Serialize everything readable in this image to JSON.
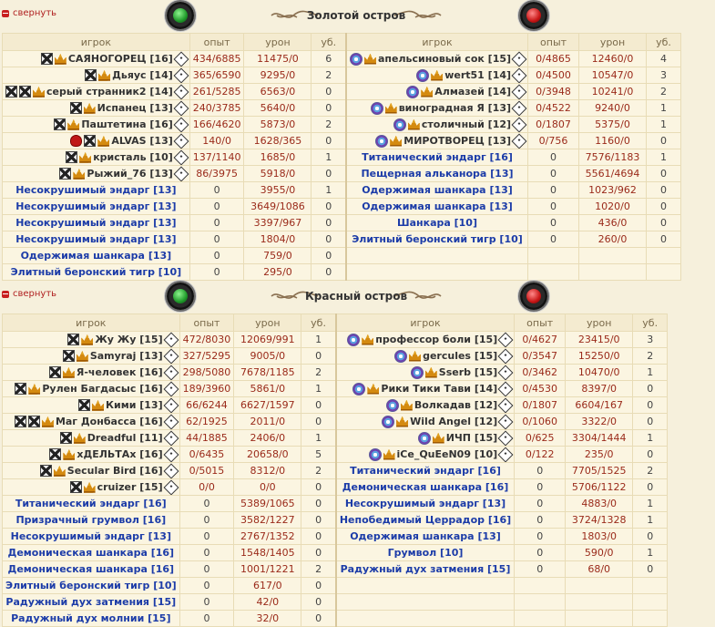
{
  "collapse_label": "свернуть",
  "headers": {
    "player": "игрок",
    "exp": "опыт",
    "damage": "урон",
    "kills": "уб."
  },
  "islands": [
    {
      "title": "Золотой остров",
      "left": [
        {
          "name": "САЯНОГОРЕЦ [16]",
          "exp": "434/6885",
          "dmg": "11475/0",
          "kills": "6",
          "type": "player",
          "icons": [
            "cross",
            "crown"
          ]
        },
        {
          "name": "Дьяус [14]",
          "exp": "365/6590",
          "dmg": "9295/0",
          "kills": "2",
          "type": "player",
          "icons": [
            "cross",
            "crown"
          ]
        },
        {
          "name": "серый странник2 [14]",
          "exp": "261/5285",
          "dmg": "6563/0",
          "kills": "0",
          "type": "player",
          "icons": [
            "cross",
            "cross",
            "crown"
          ]
        },
        {
          "name": "Испанец [13]",
          "exp": "240/3785",
          "dmg": "5640/0",
          "kills": "0",
          "type": "player",
          "icons": [
            "cross",
            "crown"
          ]
        },
        {
          "name": "Паштетина [16]",
          "exp": "166/4620",
          "dmg": "5873/0",
          "kills": "2",
          "type": "player",
          "icons": [
            "cross",
            "crown"
          ]
        },
        {
          "name": "ALVAS [13]",
          "exp": "140/0",
          "dmg": "1628/365",
          "kills": "0",
          "type": "player",
          "icons": [
            "skull",
            "cross",
            "crown"
          ]
        },
        {
          "name": "кристаль [10]",
          "exp": "137/1140",
          "dmg": "1685/0",
          "kills": "1",
          "type": "player",
          "icons": [
            "cross",
            "crown"
          ]
        },
        {
          "name": "Рыжий_76 [13]",
          "exp": "86/3975",
          "dmg": "5918/0",
          "kills": "0",
          "type": "player",
          "icons": [
            "cross",
            "crown"
          ]
        },
        {
          "name": "Несокрушимый эндарг [13]",
          "exp": "0",
          "dmg": "3955/0",
          "kills": "1",
          "type": "bot"
        },
        {
          "name": "Несокрушимый эндарг [13]",
          "exp": "0",
          "dmg": "3649/1086",
          "kills": "0",
          "type": "bot"
        },
        {
          "name": "Несокрушимый эндарг [13]",
          "exp": "0",
          "dmg": "3397/967",
          "kills": "0",
          "type": "bot"
        },
        {
          "name": "Несокрушимый эндарг [13]",
          "exp": "0",
          "dmg": "1804/0",
          "kills": "0",
          "type": "bot"
        },
        {
          "name": "Одержимая шанкара [13]",
          "exp": "0",
          "dmg": "759/0",
          "kills": "0",
          "type": "bot"
        },
        {
          "name": "Элитный беронский тигр [10]",
          "exp": "0",
          "dmg": "295/0",
          "kills": "0",
          "type": "bot"
        }
      ],
      "right": [
        {
          "name": "апельсиновый сок [15]",
          "exp": "0/4865",
          "dmg": "12460/0",
          "kills": "4",
          "type": "player",
          "icons": [
            "star",
            "crown"
          ]
        },
        {
          "name": "wert51 [14]",
          "exp": "0/4500",
          "dmg": "10547/0",
          "kills": "3",
          "type": "player",
          "icons": [
            "star",
            "crown"
          ]
        },
        {
          "name": "Алмазей [14]",
          "exp": "0/3948",
          "dmg": "10241/0",
          "kills": "2",
          "type": "player",
          "icons": [
            "star",
            "crown"
          ]
        },
        {
          "name": "виноградная Я [13]",
          "exp": "0/4522",
          "dmg": "9240/0",
          "kills": "1",
          "type": "player",
          "icons": [
            "star",
            "crown"
          ]
        },
        {
          "name": "столичный [12]",
          "exp": "0/1807",
          "dmg": "5375/0",
          "kills": "1",
          "type": "player",
          "icons": [
            "star",
            "crown"
          ]
        },
        {
          "name": "МИРОТВОРЕЦ [13]",
          "exp": "0/756",
          "dmg": "1160/0",
          "kills": "0",
          "type": "player",
          "icons": [
            "star",
            "crown"
          ]
        },
        {
          "name": "Титанический эндарг [16]",
          "exp": "0",
          "dmg": "7576/1183",
          "kills": "1",
          "type": "bot"
        },
        {
          "name": "Пещерная альканора [13]",
          "exp": "0",
          "dmg": "5561/4694",
          "kills": "0",
          "type": "bot"
        },
        {
          "name": "Одержимая шанкара [13]",
          "exp": "0",
          "dmg": "1023/962",
          "kills": "0",
          "type": "bot"
        },
        {
          "name": "Одержимая шанкара [13]",
          "exp": "0",
          "dmg": "1020/0",
          "kills": "0",
          "type": "bot"
        },
        {
          "name": "Шанкара [10]",
          "exp": "0",
          "dmg": "436/0",
          "kills": "0",
          "type": "bot"
        },
        {
          "name": "Элитный беронский тигр [10]",
          "exp": "0",
          "dmg": "260/0",
          "kills": "0",
          "type": "bot"
        }
      ]
    },
    {
      "title": "Красный остров",
      "left": [
        {
          "name": "Жу Жу [15]",
          "exp": "472/8030",
          "dmg": "12069/991",
          "kills": "1",
          "type": "player",
          "icons": [
            "cross",
            "crown"
          ]
        },
        {
          "name": "Samyraj [13]",
          "exp": "327/5295",
          "dmg": "9005/0",
          "kills": "0",
          "type": "player",
          "icons": [
            "cross",
            "crown"
          ]
        },
        {
          "name": "Я-человек [16]",
          "exp": "298/5080",
          "dmg": "7678/1185",
          "kills": "2",
          "type": "player",
          "icons": [
            "cross",
            "crown"
          ]
        },
        {
          "name": "Рулен Багдасыс [16]",
          "exp": "189/3960",
          "dmg": "5861/0",
          "kills": "1",
          "type": "player",
          "icons": [
            "cross",
            "crown"
          ]
        },
        {
          "name": "Кими [13]",
          "exp": "66/6244",
          "dmg": "6627/1597",
          "kills": "0",
          "type": "player",
          "icons": [
            "cross",
            "crown"
          ]
        },
        {
          "name": "Маг Донбасса [16]",
          "exp": "62/1925",
          "dmg": "2011/0",
          "kills": "0",
          "type": "player",
          "icons": [
            "cross",
            "cross",
            "crown"
          ]
        },
        {
          "name": "Dreadful [11]",
          "exp": "44/1885",
          "dmg": "2406/0",
          "kills": "1",
          "type": "player",
          "icons": [
            "cross",
            "crown"
          ]
        },
        {
          "name": "хДЕЛЬТАх [16]",
          "exp": "0/6435",
          "dmg": "20658/0",
          "kills": "5",
          "type": "player",
          "icons": [
            "cross",
            "crown"
          ]
        },
        {
          "name": "Secular Bird [16]",
          "exp": "0/5015",
          "dmg": "8312/0",
          "kills": "2",
          "type": "player",
          "icons": [
            "cross",
            "crown"
          ]
        },
        {
          "name": "cruizer [15]",
          "exp": "0/0",
          "dmg": "0/0",
          "kills": "0",
          "type": "player",
          "icons": [
            "cross",
            "crown"
          ]
        },
        {
          "name": "Титанический эндарг [16]",
          "exp": "0",
          "dmg": "5389/1065",
          "kills": "0",
          "type": "bot"
        },
        {
          "name": "Призрачный грумвол [16]",
          "exp": "0",
          "dmg": "3582/1227",
          "kills": "0",
          "type": "bot"
        },
        {
          "name": "Несокрушимый эндарг [13]",
          "exp": "0",
          "dmg": "2767/1352",
          "kills": "0",
          "type": "bot"
        },
        {
          "name": "Демоническая шанкара [16]",
          "exp": "0",
          "dmg": "1548/1405",
          "kills": "0",
          "type": "bot"
        },
        {
          "name": "Демоническая шанкара [16]",
          "exp": "0",
          "dmg": "1001/1221",
          "kills": "2",
          "type": "bot"
        },
        {
          "name": "Элитный беронский тигр [10]",
          "exp": "0",
          "dmg": "617/0",
          "kills": "0",
          "type": "bot"
        },
        {
          "name": "Радужный дух затмения [15]",
          "exp": "0",
          "dmg": "42/0",
          "kills": "0",
          "type": "bot"
        },
        {
          "name": "Радужный дух молнии [15]",
          "exp": "0",
          "dmg": "32/0",
          "kills": "0",
          "type": "bot"
        }
      ],
      "right": [
        {
          "name": "профессор боли [15]",
          "exp": "0/4627",
          "dmg": "23415/0",
          "kills": "3",
          "type": "player",
          "icons": [
            "star",
            "crown"
          ]
        },
        {
          "name": "gercules [15]",
          "exp": "0/3547",
          "dmg": "15250/0",
          "kills": "2",
          "type": "player",
          "icons": [
            "star",
            "crown"
          ]
        },
        {
          "name": "Sserb [15]",
          "exp": "0/3462",
          "dmg": "10470/0",
          "kills": "1",
          "type": "player",
          "icons": [
            "star",
            "crown"
          ]
        },
        {
          "name": "Рики Тики Тави [14]",
          "exp": "0/4530",
          "dmg": "8397/0",
          "kills": "0",
          "type": "player",
          "icons": [
            "star",
            "crown"
          ]
        },
        {
          "name": "Волкадав [12]",
          "exp": "0/1807",
          "dmg": "6604/167",
          "kills": "0",
          "type": "player",
          "icons": [
            "star",
            "crown"
          ]
        },
        {
          "name": "Wild Angel [12]",
          "exp": "0/1060",
          "dmg": "3322/0",
          "kills": "0",
          "type": "player",
          "icons": [
            "star",
            "crown"
          ]
        },
        {
          "name": "ИЧП [15]",
          "exp": "0/625",
          "dmg": "3304/1444",
          "kills": "1",
          "type": "player",
          "icons": [
            "star",
            "crown"
          ]
        },
        {
          "name": "iCe_QuEeN09 [10]",
          "exp": "0/122",
          "dmg": "235/0",
          "kills": "0",
          "type": "player",
          "icons": [
            "star",
            "crown"
          ]
        },
        {
          "name": "Титанический эндарг [16]",
          "exp": "0",
          "dmg": "7705/1525",
          "kills": "2",
          "type": "bot"
        },
        {
          "name": "Демоническая шанкара [16]",
          "exp": "0",
          "dmg": "5706/1122",
          "kills": "0",
          "type": "bot"
        },
        {
          "name": "Несокрушимый эндарг [13]",
          "exp": "0",
          "dmg": "4883/0",
          "kills": "1",
          "type": "bot"
        },
        {
          "name": "Непобедимый Церрадор [16]",
          "exp": "0",
          "dmg": "3724/1328",
          "kills": "1",
          "type": "bot"
        },
        {
          "name": "Одержимая шанкара [13]",
          "exp": "0",
          "dmg": "1803/0",
          "kills": "0",
          "type": "bot"
        },
        {
          "name": "Грумвол [10]",
          "exp": "0",
          "dmg": "590/0",
          "kills": "1",
          "type": "bot"
        },
        {
          "name": "Радужный дух затмения [15]",
          "exp": "0",
          "dmg": "68/0",
          "kills": "0",
          "type": "bot"
        }
      ]
    }
  ]
}
